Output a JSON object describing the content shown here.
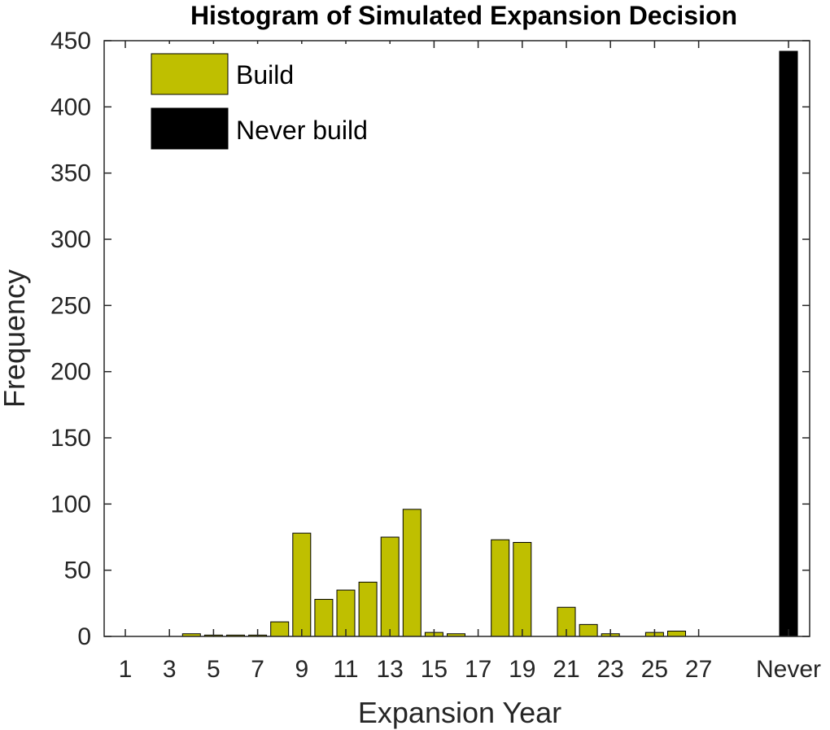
{
  "chart_data": {
    "type": "bar",
    "title": "Histogram of Simulated Expansion Decision",
    "xlabel": "Expansion Year",
    "ylabel": "Frequency",
    "ylim": [
      0,
      450
    ],
    "yticks": [
      0,
      50,
      100,
      150,
      200,
      250,
      300,
      350,
      400,
      450
    ],
    "xtick_labels": [
      "1",
      "3",
      "5",
      "7",
      "9",
      "11",
      "13",
      "15",
      "17",
      "19",
      "21",
      "23",
      "25",
      "27",
      "Never"
    ],
    "legend": {
      "placement": "top-left",
      "entries": [
        {
          "label": "Build",
          "color": "#bfbf00"
        },
        {
          "label": "Never build",
          "color": "#000000"
        }
      ]
    },
    "series": [
      {
        "name": "Build",
        "color": "#bfbf00",
        "x": [
          1,
          2,
          3,
          4,
          5,
          6,
          7,
          8,
          9,
          10,
          11,
          12,
          13,
          14,
          15,
          16,
          17,
          18,
          19,
          20,
          21,
          22,
          23,
          24,
          25,
          26,
          27,
          28,
          29
        ],
        "values": [
          0,
          0,
          0,
          2,
          1,
          1,
          1,
          11,
          78,
          28,
          35,
          41,
          75,
          96,
          3,
          2,
          0,
          73,
          71,
          0,
          22,
          9,
          2,
          0,
          3,
          4,
          0,
          0,
          0
        ]
      },
      {
        "name": "Never build",
        "color": "#000000",
        "x": [
          "Never"
        ],
        "values": [
          442
        ]
      }
    ],
    "grid": false,
    "box": true
  }
}
